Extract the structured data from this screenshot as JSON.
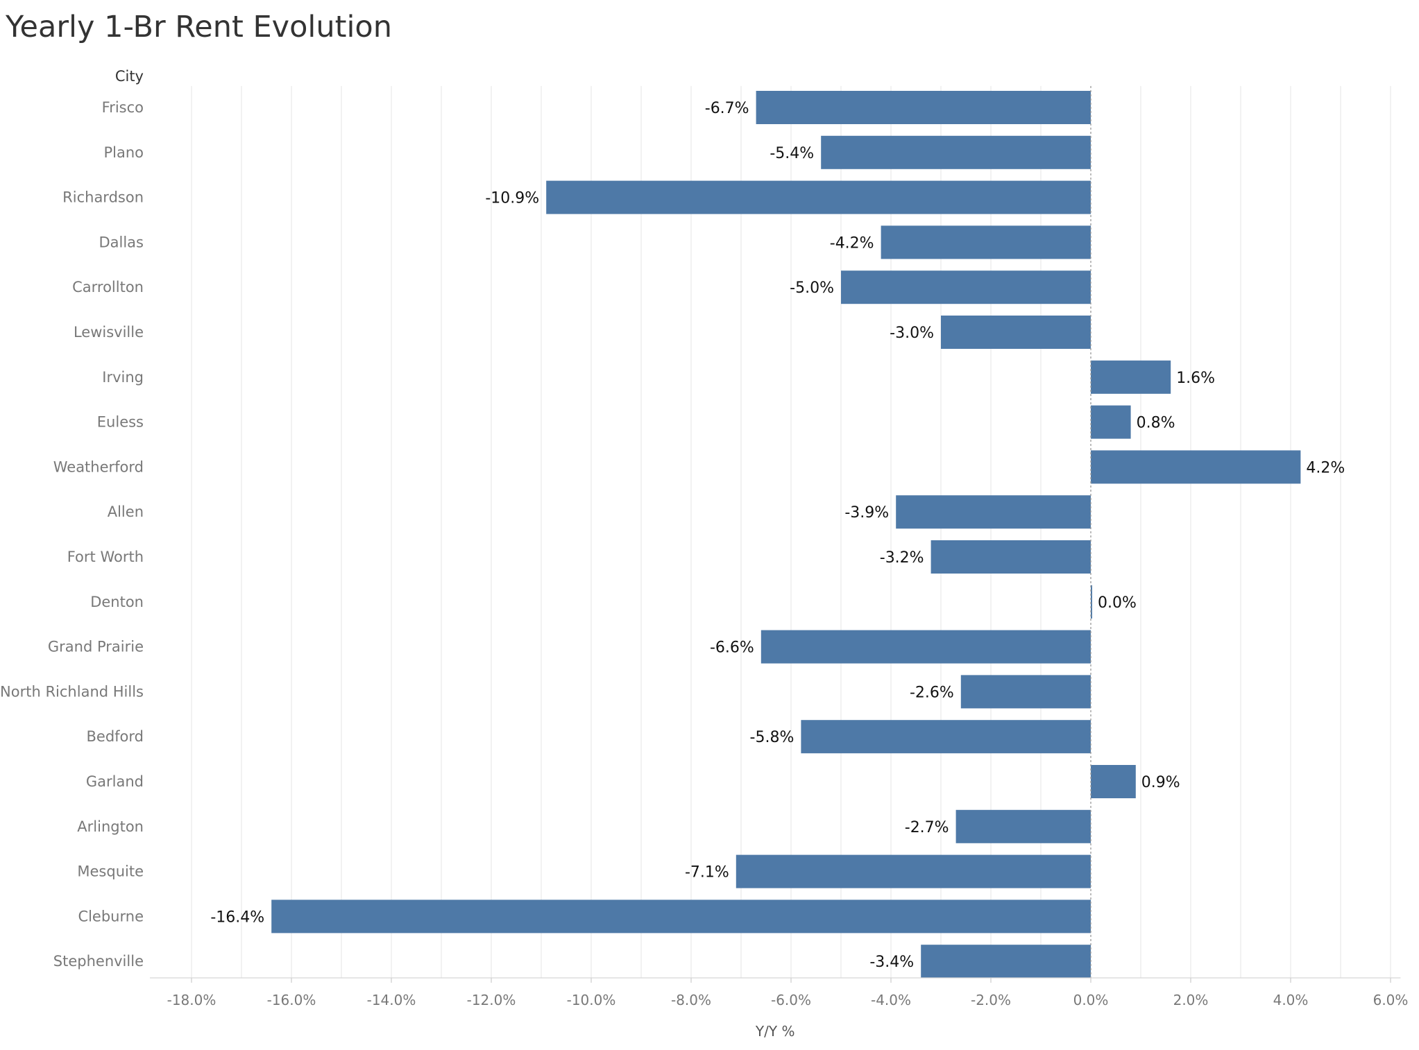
{
  "chart_data": {
    "type": "bar",
    "orientation": "horizontal",
    "title": "Yearly 1-Br Rent Evolution",
    "row_header": "City",
    "xlabel": "Y/Y %",
    "xlim": [
      -18.7,
      6.2
    ],
    "xticks": [
      -18,
      -16,
      -14,
      -12,
      -10,
      -8,
      -6,
      -4,
      -2,
      0,
      2,
      4,
      6
    ],
    "xtick_labels": [
      "-18.0%",
      "-16.0%",
      "-14.0%",
      "-12.0%",
      "-10.0%",
      "-8.0%",
      "-6.0%",
      "-4.0%",
      "-2.0%",
      "0.0%",
      "2.0%",
      "4.0%",
      "6.0%"
    ],
    "grid": true,
    "bar_color": "#4e79a7",
    "categories": [
      "Frisco",
      "Plano",
      "Richardson",
      "Dallas",
      "Carrollton",
      "Lewisville",
      "Irving",
      "Euless",
      "Weatherford",
      "Allen",
      "Fort Worth",
      "Denton",
      "Grand Prairie",
      "North Richland Hills",
      "Bedford",
      "Garland",
      "Arlington",
      "Mesquite",
      "Cleburne",
      "Stephenville"
    ],
    "values": [
      -6.7,
      -5.4,
      -10.9,
      -4.2,
      -5.0,
      -3.0,
      1.6,
      0.8,
      4.2,
      -3.9,
      -3.2,
      0.0,
      -6.6,
      -2.6,
      -5.8,
      0.9,
      -2.7,
      -7.1,
      -16.4,
      -3.4
    ],
    "data_labels": [
      "-6.7%",
      "-5.4%",
      "-10.9%",
      "-4.2%",
      "-5.0%",
      "-3.0%",
      "1.6%",
      "0.8%",
      "4.2%",
      "-3.9%",
      "-3.2%",
      "0.0%",
      "-6.6%",
      "-2.6%",
      "-5.8%",
      "0.9%",
      "-2.7%",
      "-7.1%",
      "-16.4%",
      "-3.4%"
    ]
  }
}
